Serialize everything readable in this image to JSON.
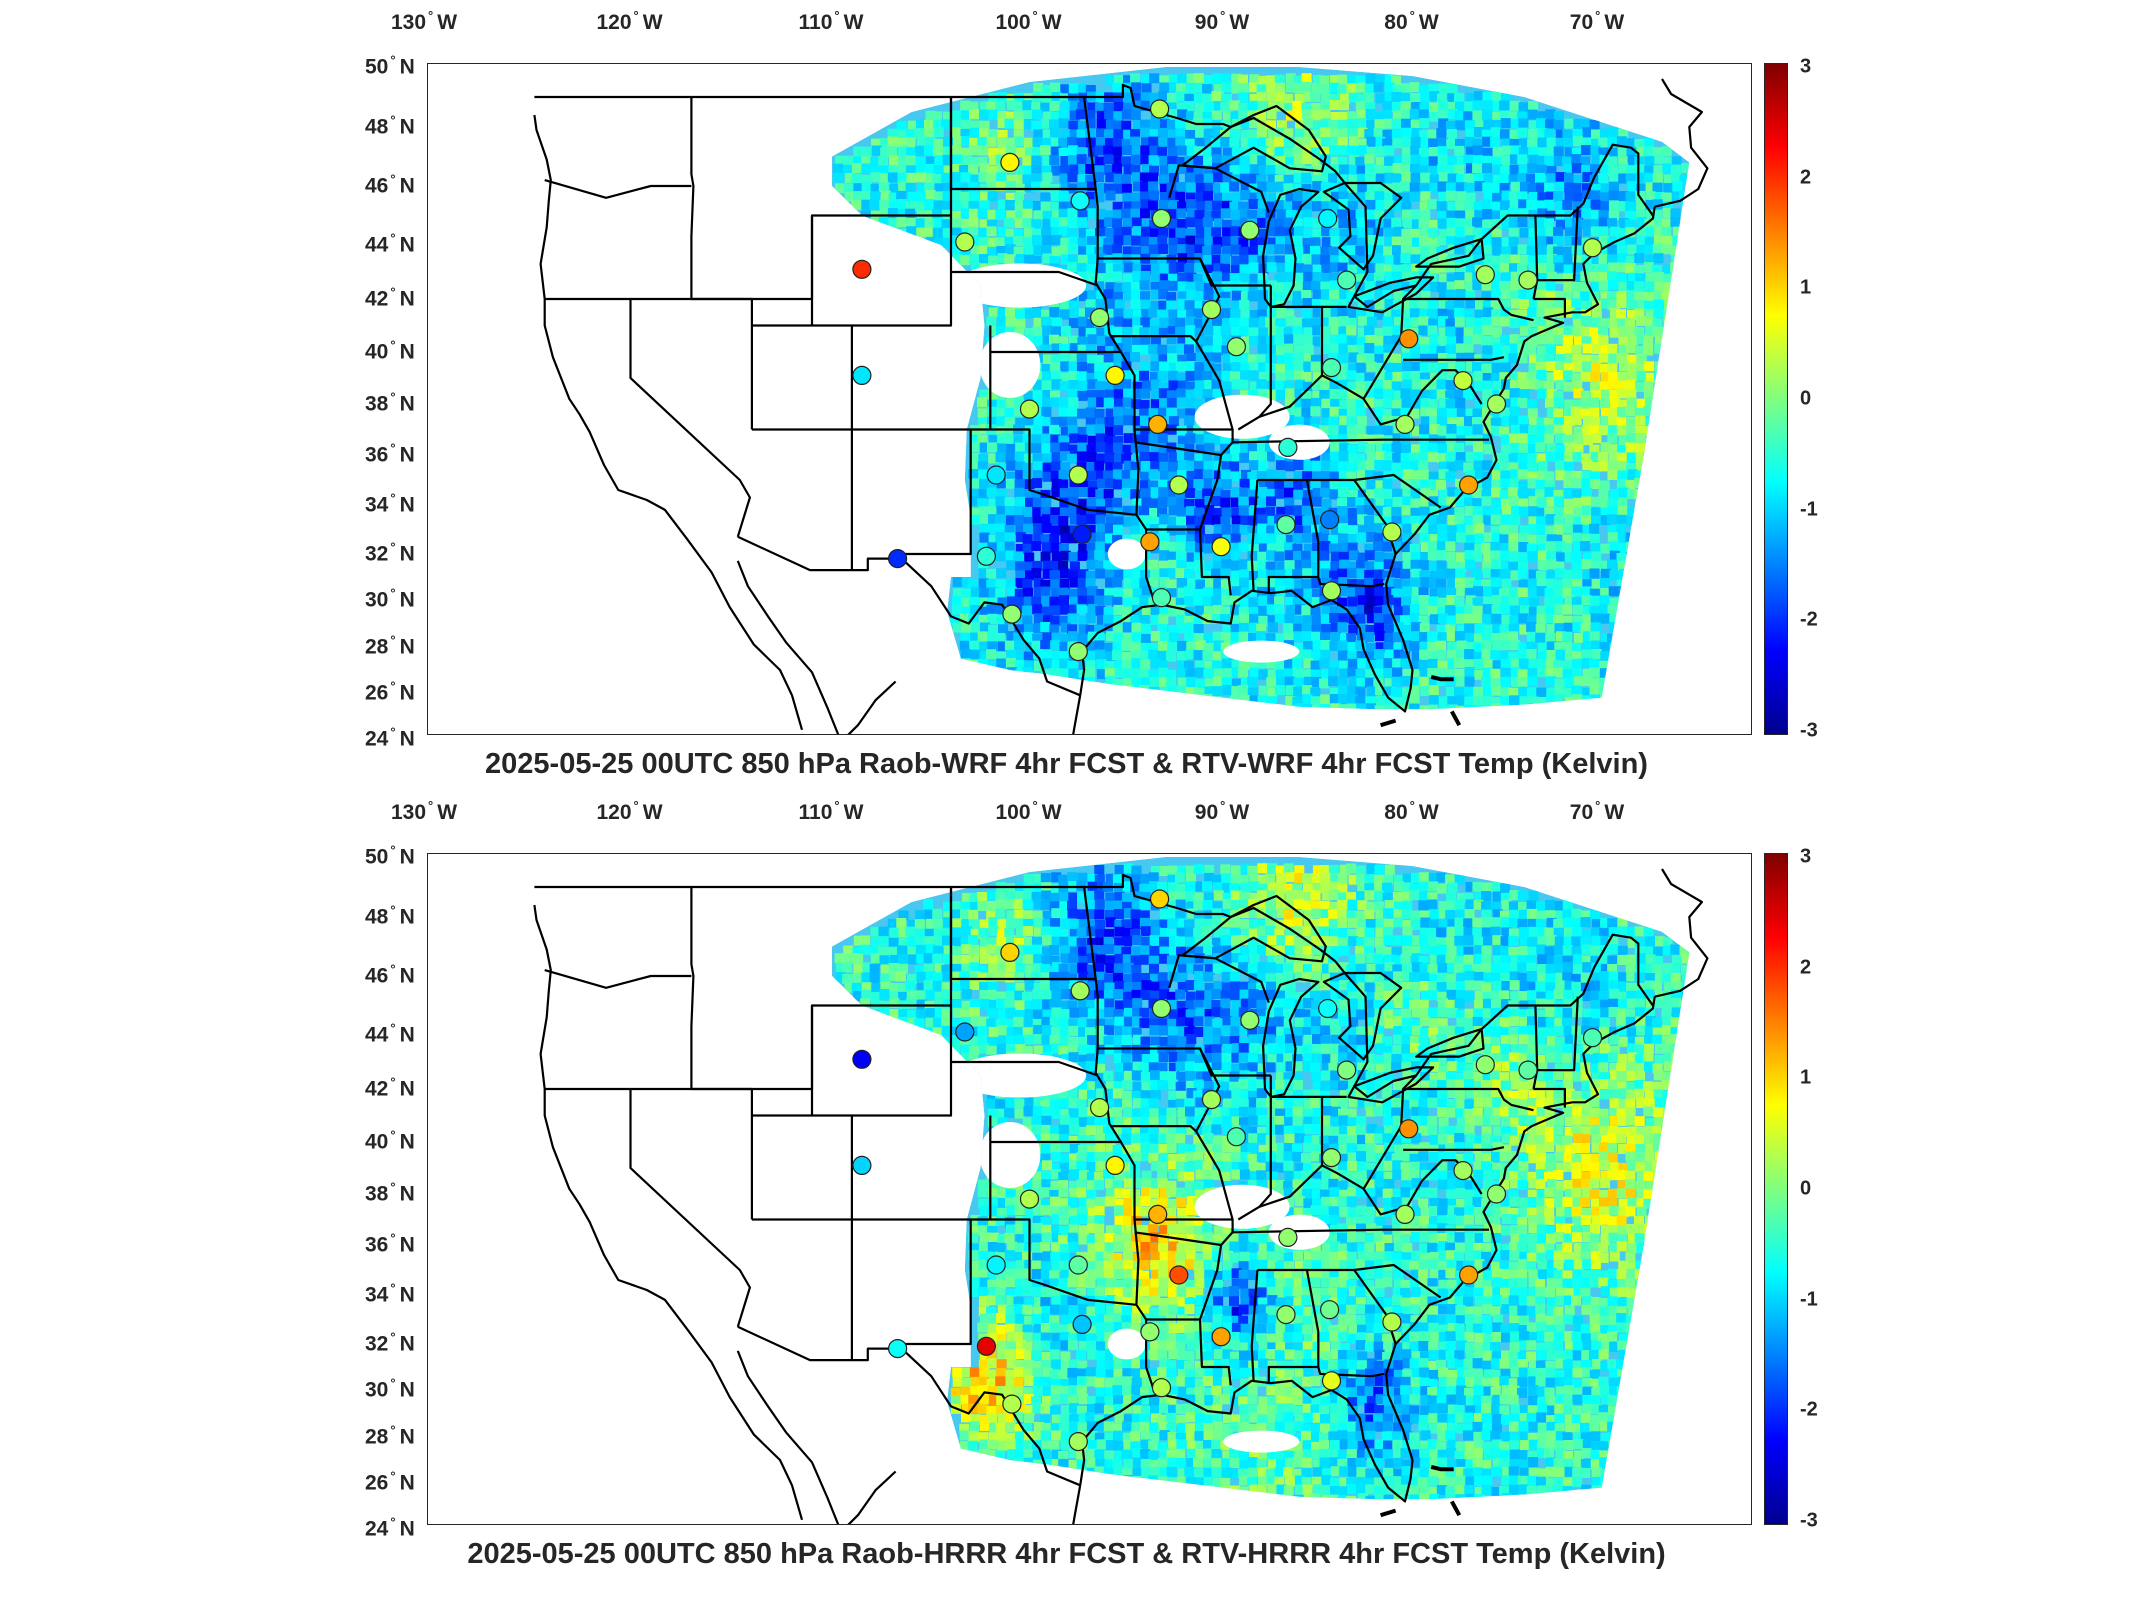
{
  "colors": {
    "colormap": [
      "#800000",
      "#ff0000",
      "#ff8000",
      "#ffff00",
      "#80ff80",
      "#00ffff",
      "#0080ff",
      "#0000ff",
      "#00008f"
    ],
    "frame": "#262626",
    "land": "#ffffff",
    "field_base": "#46c8f0"
  },
  "lon_labels": [
    {
      "deg": "130",
      "dir": "W"
    },
    {
      "deg": "120",
      "dir": "W"
    },
    {
      "deg": "110",
      "dir": "W"
    },
    {
      "deg": "100",
      "dir": "W"
    },
    {
      "deg": "90",
      "dir": "W"
    },
    {
      "deg": "80",
      "dir": "W"
    },
    {
      "deg": "70",
      "dir": "W"
    }
  ],
  "lat_labels": [
    {
      "deg": "50",
      "dir": "N"
    },
    {
      "deg": "48",
      "dir": "N"
    },
    {
      "deg": "46",
      "dir": "N"
    },
    {
      "deg": "44",
      "dir": "N"
    },
    {
      "deg": "42",
      "dir": "N"
    },
    {
      "deg": "40",
      "dir": "N"
    },
    {
      "deg": "38",
      "dir": "N"
    },
    {
      "deg": "36",
      "dir": "N"
    },
    {
      "deg": "34",
      "dir": "N"
    },
    {
      "deg": "32",
      "dir": "N"
    },
    {
      "deg": "30",
      "dir": "N"
    },
    {
      "deg": "28",
      "dir": "N"
    },
    {
      "deg": "26",
      "dir": "N"
    },
    {
      "deg": "24",
      "dir": "N"
    }
  ],
  "colorbar": {
    "ticks": [
      "3",
      "2",
      "1",
      "0",
      "-1",
      "-2",
      "-3"
    ],
    "min": -3,
    "max": 3
  },
  "panels": [
    {
      "title": "2025-05-25 00UTC 850 hPa Raob-WRF 4hr FCST & RTV-WRF 4hr FCST Temp (Kelvin)",
      "stations": [
        {
          "lon": -93.3,
          "lat": 48.6,
          "value": 0.3
        },
        {
          "lon": -101.0,
          "lat": 46.8,
          "value": 0.8
        },
        {
          "lon": -97.4,
          "lat": 45.5,
          "value": -0.7
        },
        {
          "lon": -93.2,
          "lat": 44.9,
          "value": 0.1
        },
        {
          "lon": -103.3,
          "lat": 44.1,
          "value": 0.3
        },
        {
          "lon": -84.5,
          "lat": 44.9,
          "value": -0.8
        },
        {
          "lon": -88.6,
          "lat": 44.5,
          "value": 0.1
        },
        {
          "lon": -108.5,
          "lat": 43.1,
          "value": 2.0
        },
        {
          "lon": -83.5,
          "lat": 42.7,
          "value": -0.3
        },
        {
          "lon": -76.1,
          "lat": 42.9,
          "value": 0.2
        },
        {
          "lon": -73.8,
          "lat": 42.7,
          "value": 0.2
        },
        {
          "lon": -70.3,
          "lat": 43.9,
          "value": 0.3
        },
        {
          "lon": -96.4,
          "lat": 41.3,
          "value": 0.1
        },
        {
          "lon": -90.6,
          "lat": 41.6,
          "value": 0.2
        },
        {
          "lon": -89.3,
          "lat": 40.2,
          "value": 0.1
        },
        {
          "lon": -80.2,
          "lat": 40.5,
          "value": 1.4
        },
        {
          "lon": -108.5,
          "lat": 39.1,
          "value": -0.9
        },
        {
          "lon": -95.6,
          "lat": 39.1,
          "value": 0.8
        },
        {
          "lon": -84.3,
          "lat": 39.4,
          "value": -0.3
        },
        {
          "lon": -77.3,
          "lat": 38.9,
          "value": 0.4
        },
        {
          "lon": -75.5,
          "lat": 38.0,
          "value": 0.2
        },
        {
          "lon": -100.0,
          "lat": 37.8,
          "value": 0.3
        },
        {
          "lon": -93.4,
          "lat": 37.2,
          "value": 1.2
        },
        {
          "lon": -80.4,
          "lat": 37.2,
          "value": 0.2
        },
        {
          "lon": -86.6,
          "lat": 36.3,
          "value": -0.5
        },
        {
          "lon": -101.7,
          "lat": 35.2,
          "value": -0.9
        },
        {
          "lon": -97.5,
          "lat": 35.2,
          "value": 0.3
        },
        {
          "lon": -92.3,
          "lat": 34.8,
          "value": 0.3
        },
        {
          "lon": -86.7,
          "lat": 33.2,
          "value": -0.2
        },
        {
          "lon": -84.4,
          "lat": 33.4,
          "value": -1.5
        },
        {
          "lon": -77.0,
          "lat": 34.8,
          "value": 1.3
        },
        {
          "lon": -81.1,
          "lat": 32.9,
          "value": 0.3
        },
        {
          "lon": -106.7,
          "lat": 31.8,
          "value": -2.0
        },
        {
          "lon": -102.2,
          "lat": 31.9,
          "value": -0.5
        },
        {
          "lon": -97.3,
          "lat": 32.8,
          "value": -2.1
        },
        {
          "lon": -93.8,
          "lat": 32.5,
          "value": 1.3
        },
        {
          "lon": -90.1,
          "lat": 32.3,
          "value": 0.7
        },
        {
          "lon": -100.9,
          "lat": 29.4,
          "value": 0.1
        },
        {
          "lon": -93.2,
          "lat": 30.1,
          "value": -0.3
        },
        {
          "lon": -84.3,
          "lat": 30.4,
          "value": 0.2
        },
        {
          "lon": -97.5,
          "lat": 27.8,
          "value": 0.1
        }
      ]
    },
    {
      "title": "2025-05-25 00UTC 850 hPa Raob-HRRR 4hr FCST & RTV-HRRR 4hr FCST Temp (Kelvin)",
      "stations": [
        {
          "lon": -93.3,
          "lat": 48.6,
          "value": 1.0
        },
        {
          "lon": -101.0,
          "lat": 46.8,
          "value": 1.0
        },
        {
          "lon": -97.4,
          "lat": 45.5,
          "value": 0.2
        },
        {
          "lon": -93.2,
          "lat": 44.9,
          "value": 0.1
        },
        {
          "lon": -103.3,
          "lat": 44.1,
          "value": -1.3
        },
        {
          "lon": -84.5,
          "lat": 44.9,
          "value": -0.7
        },
        {
          "lon": -88.6,
          "lat": 44.5,
          "value": 0.1
        },
        {
          "lon": -108.5,
          "lat": 43.1,
          "value": -2.3
        },
        {
          "lon": -83.5,
          "lat": 42.7,
          "value": 0.0
        },
        {
          "lon": -76.1,
          "lat": 42.9,
          "value": 0.1
        },
        {
          "lon": -73.8,
          "lat": 42.7,
          "value": -0.2
        },
        {
          "lon": -70.3,
          "lat": 43.9,
          "value": -0.3
        },
        {
          "lon": -96.4,
          "lat": 41.3,
          "value": 0.3
        },
        {
          "lon": -90.6,
          "lat": 41.6,
          "value": 0.2
        },
        {
          "lon": -89.3,
          "lat": 40.2,
          "value": -0.3
        },
        {
          "lon": -80.2,
          "lat": 40.5,
          "value": 1.4
        },
        {
          "lon": -108.5,
          "lat": 39.1,
          "value": -1.0
        },
        {
          "lon": -95.6,
          "lat": 39.1,
          "value": 0.8
        },
        {
          "lon": -84.3,
          "lat": 39.4,
          "value": 0.1
        },
        {
          "lon": -77.3,
          "lat": 38.9,
          "value": 0.2
        },
        {
          "lon": -75.5,
          "lat": 38.0,
          "value": 0.1
        },
        {
          "lon": -100.0,
          "lat": 37.8,
          "value": 0.3
        },
        {
          "lon": -93.4,
          "lat": 37.2,
          "value": 1.2
        },
        {
          "lon": -80.4,
          "lat": 37.2,
          "value": 0.2
        },
        {
          "lon": -86.6,
          "lat": 36.3,
          "value": 0.1
        },
        {
          "lon": -101.7,
          "lat": 35.2,
          "value": -0.8
        },
        {
          "lon": -97.5,
          "lat": 35.2,
          "value": -0.2
        },
        {
          "lon": -92.3,
          "lat": 34.8,
          "value": 1.8
        },
        {
          "lon": -86.7,
          "lat": 33.2,
          "value": 0.1
        },
        {
          "lon": -84.4,
          "lat": 33.4,
          "value": -0.1
        },
        {
          "lon": -77.0,
          "lat": 34.8,
          "value": 1.3
        },
        {
          "lon": -81.1,
          "lat": 32.9,
          "value": 0.3
        },
        {
          "lon": -106.7,
          "lat": 31.8,
          "value": -0.7
        },
        {
          "lon": -102.2,
          "lat": 31.9,
          "value": 2.4
        },
        {
          "lon": -97.3,
          "lat": 32.8,
          "value": -1.1
        },
        {
          "lon": -93.8,
          "lat": 32.5,
          "value": 0.1
        },
        {
          "lon": -90.1,
          "lat": 32.3,
          "value": 1.3
        },
        {
          "lon": -100.9,
          "lat": 29.4,
          "value": 0.3
        },
        {
          "lon": -93.2,
          "lat": 30.1,
          "value": 0.3
        },
        {
          "lon": -84.3,
          "lat": 30.4,
          "value": 0.6
        },
        {
          "lon": -97.5,
          "lat": 27.8,
          "value": 0.2
        }
      ]
    }
  ]
}
